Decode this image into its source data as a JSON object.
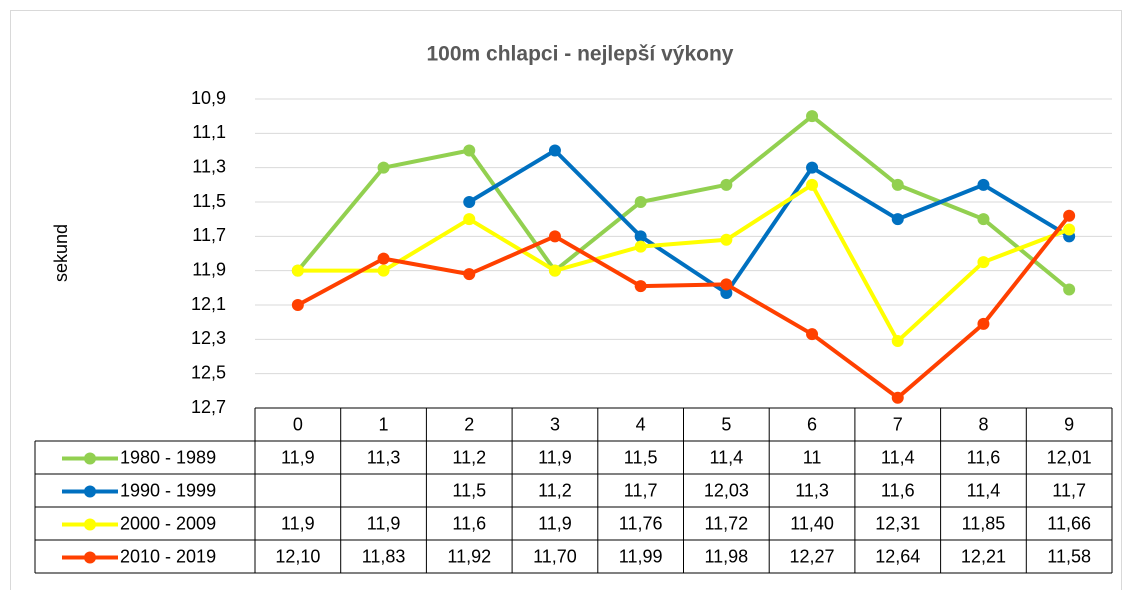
{
  "chart_data": {
    "type": "line",
    "title": "100m chlapci - nejlepší výkony",
    "y_label": "sekund",
    "categories": [
      "0",
      "1",
      "2",
      "3",
      "4",
      "5",
      "6",
      "7",
      "8",
      "9"
    ],
    "series": [
      {
        "name": "1980 - 1989",
        "color": "#92d050",
        "values": [
          11.9,
          11.3,
          11.2,
          11.9,
          11.5,
          11.4,
          11,
          11.4,
          11.6,
          12.01
        ],
        "value_labels": [
          "11,9",
          "11,3",
          "11,2",
          "11,9",
          "11,5",
          "11,4",
          "11",
          "11,4",
          "11,6",
          "12,01"
        ]
      },
      {
        "name": "1990 - 1999",
        "color": "#0070c0",
        "values": [
          null,
          null,
          11.5,
          11.2,
          11.7,
          12.03,
          11.3,
          11.6,
          11.4,
          11.7
        ],
        "value_labels": [
          null,
          null,
          "11,5",
          "11,2",
          "11,7",
          "12,03",
          "11,3",
          "11,6",
          "11,4",
          "11,7"
        ]
      },
      {
        "name": "2000 - 2009",
        "color": "#ffff00",
        "values": [
          11.9,
          11.9,
          11.6,
          11.9,
          11.76,
          11.72,
          11.4,
          12.31,
          11.85,
          11.66
        ],
        "value_labels": [
          "11,9",
          "11,9",
          "11,6",
          "11,9",
          "11,76",
          "11,72",
          "11,40",
          "12,31",
          "11,85",
          "11,66"
        ]
      },
      {
        "name": "2010 - 2019",
        "color": "#ff4000",
        "values": [
          12.1,
          11.83,
          11.92,
          11.7,
          11.99,
          11.98,
          12.27,
          12.64,
          12.21,
          11.58
        ],
        "value_labels": [
          "12,10",
          "11,83",
          "11,92",
          "11,70",
          "11,99",
          "11,98",
          "12,27",
          "12,64",
          "12,21",
          "11,58"
        ]
      }
    ],
    "ylim": [
      12.7,
      10.9
    ],
    "yticks": [
      {
        "value": 10.9,
        "label": "10,9"
      },
      {
        "value": 11.1,
        "label": "11,1"
      },
      {
        "value": 11.3,
        "label": "11,3"
      },
      {
        "value": 11.5,
        "label": "11,5"
      },
      {
        "value": 11.7,
        "label": "11,7"
      },
      {
        "value": 11.9,
        "label": "11,9"
      },
      {
        "value": 12.1,
        "label": "12,1"
      },
      {
        "value": 12.3,
        "label": "12,3"
      },
      {
        "value": 12.5,
        "label": "12,5"
      },
      {
        "value": 12.7,
        "label": "12,7"
      }
    ],
    "grid": true
  }
}
